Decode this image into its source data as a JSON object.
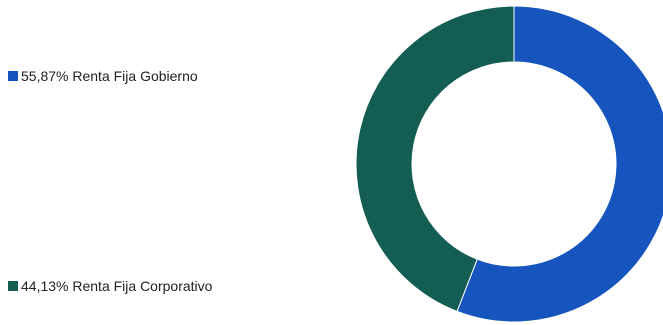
{
  "chart_data": {
    "type": "pie",
    "variant": "donut",
    "title": "",
    "legend_position": "left",
    "series": [
      {
        "name": "",
        "slices": [
          {
            "label": "Renta Fija Gobierno",
            "value": 55.87,
            "display": "55,87%",
            "color": "#1654BE"
          },
          {
            "label": "Renta Fija Corporativo",
            "value": 44.13,
            "display": "44,13%",
            "color": "#135D53"
          }
        ]
      }
    ]
  },
  "legend": {
    "gov": {
      "text": "55,87% Renta Fija Gobierno"
    },
    "corp": {
      "text": "44,13% Renta Fija Corporativo"
    }
  }
}
